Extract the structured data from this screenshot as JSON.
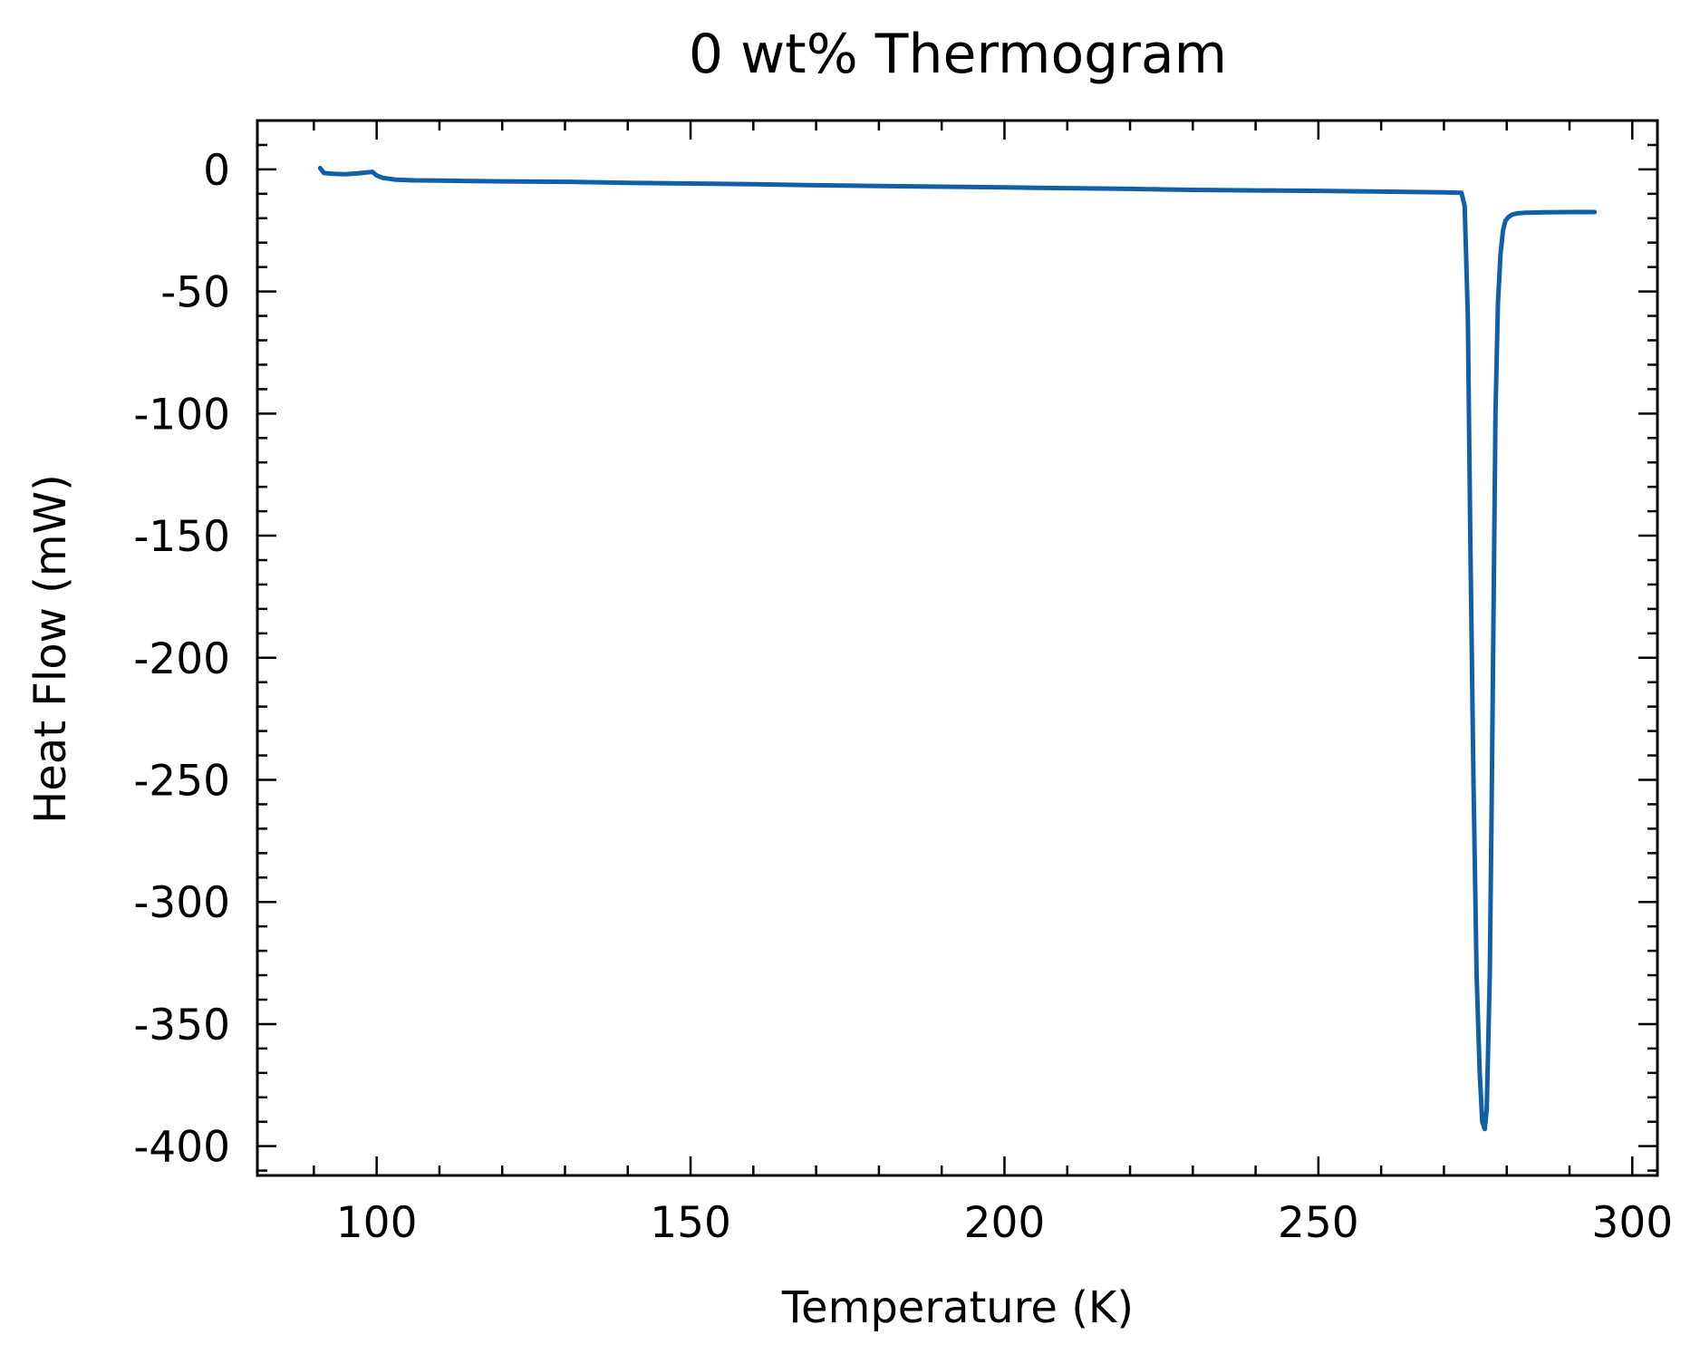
{
  "chart_data": {
    "type": "line",
    "title": "0 wt% Thermogram",
    "xlabel": "Temperature (K)",
    "ylabel": "Heat Flow (mW)",
    "xlim": [
      81,
      304
    ],
    "ylim": [
      -412,
      20
    ],
    "x_ticks": [
      100,
      150,
      200,
      250,
      300
    ],
    "x_tick_labels": [
      "100",
      "150",
      "200",
      "250",
      "300"
    ],
    "y_ticks": [
      0,
      -50,
      -100,
      -150,
      -200,
      -250,
      -300,
      -350,
      -400
    ],
    "y_tick_labels": [
      "0",
      "-50",
      "-100",
      "-150",
      "-200",
      "-250",
      "-300",
      "-350",
      "-400"
    ],
    "grid": false,
    "series": [
      {
        "color": "#1060a8",
        "x": [
          91.0,
          91.3,
          91.6,
          93,
          95,
          97,
          99.3,
          100,
          101,
          103,
          106,
          110,
          120,
          130,
          140,
          150,
          160,
          170,
          180,
          190,
          200,
          210,
          220,
          225,
          230,
          240,
          250,
          260,
          270,
          272.8,
          273.3,
          273.8,
          274.2,
          274.7,
          275.2,
          275.7,
          276.1,
          276.5,
          276.8,
          277.0,
          277.3,
          277.6,
          277.9,
          278.2,
          278.6,
          279.0,
          279.4,
          279.8,
          280.3,
          280.9,
          281.7,
          283,
          286,
          290,
          294
        ],
        "y": [
          0.5,
          -0.5,
          -1.5,
          -1.8,
          -2.0,
          -1.6,
          -1.0,
          -2.5,
          -3.5,
          -4.2,
          -4.5,
          -4.6,
          -4.9,
          -5.1,
          -5.5,
          -5.8,
          -6.1,
          -6.5,
          -6.8,
          -7.1,
          -7.4,
          -7.7,
          -8.0,
          -8.2,
          -8.4,
          -8.6,
          -8.8,
          -9.1,
          -9.4,
          -9.6,
          -15,
          -60,
          -150,
          -250,
          -330,
          -370,
          -390,
          -393,
          -385,
          -365,
          -330,
          -260,
          -180,
          -100,
          -55,
          -35,
          -25,
          -21,
          -19.5,
          -18.5,
          -18.0,
          -17.8,
          -17.6,
          -17.5,
          -17.5
        ]
      }
    ]
  }
}
